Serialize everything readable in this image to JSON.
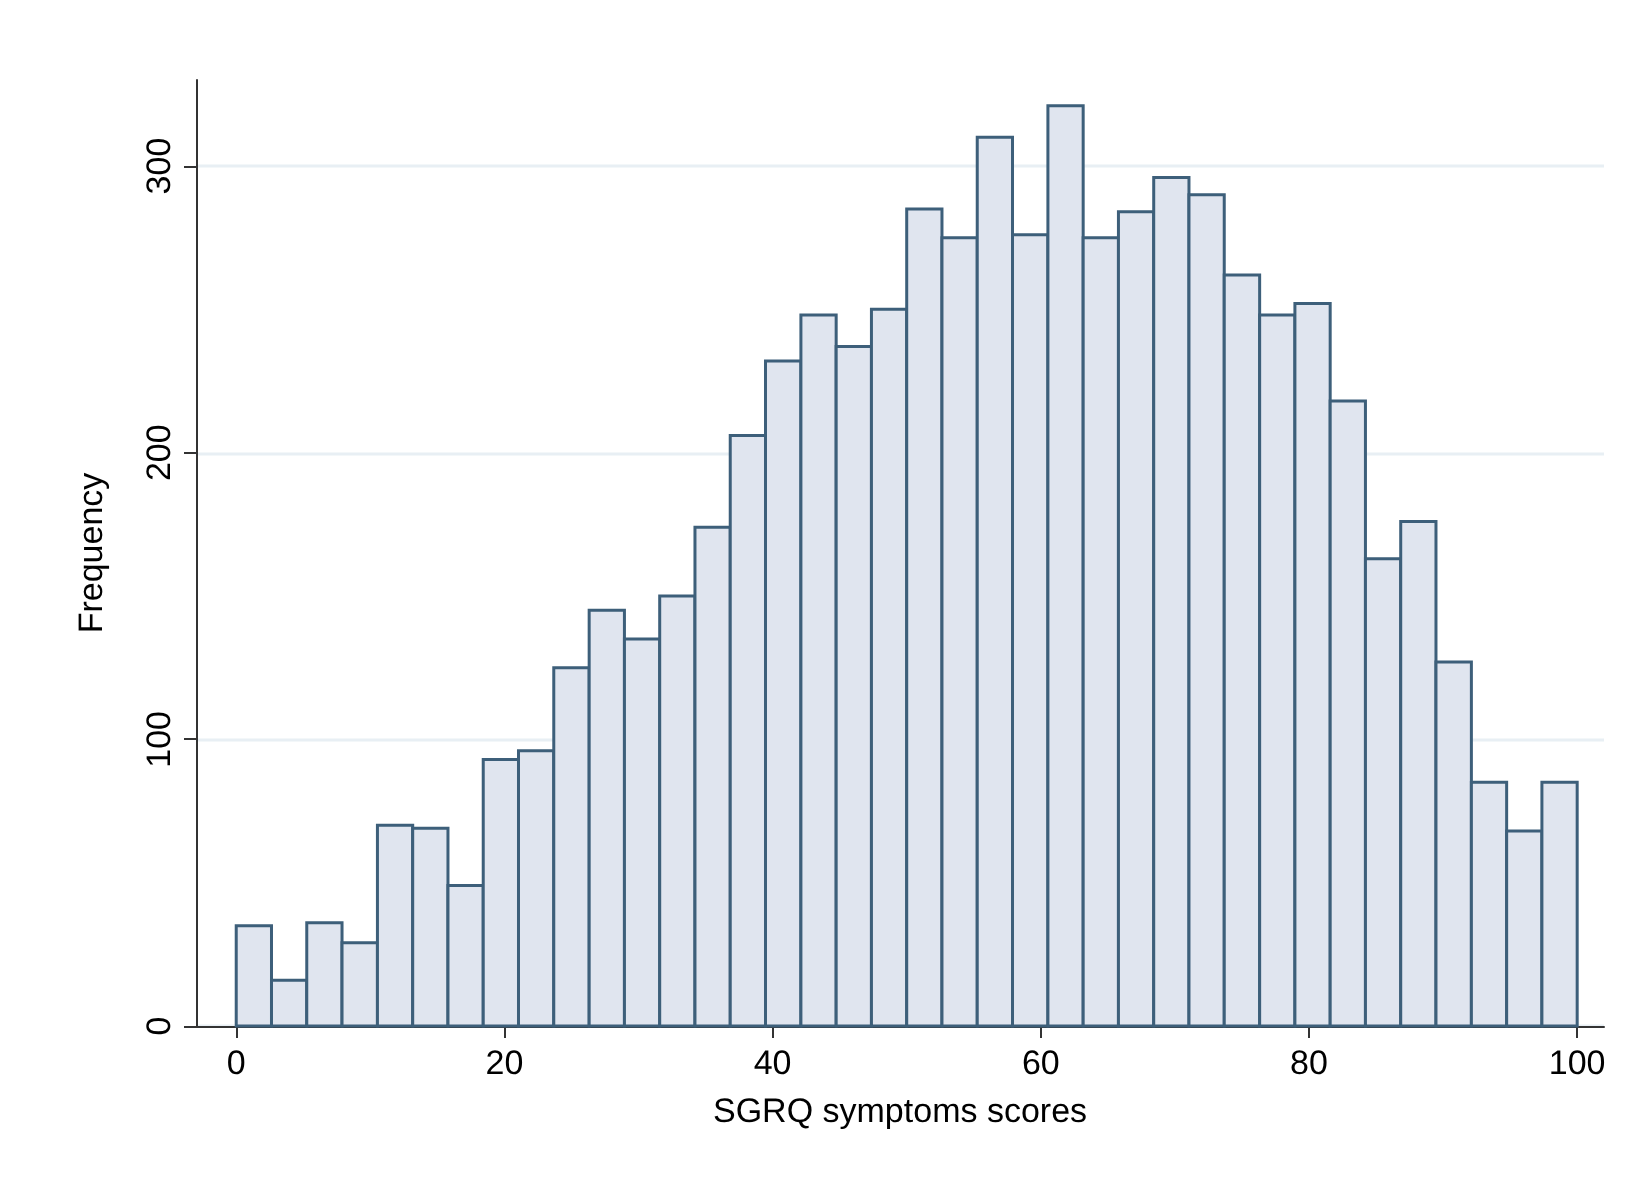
{
  "chart_data": {
    "type": "histogram",
    "xlabel": "SGRQ symptoms scores",
    "ylabel": "Frequency",
    "bins": [
      0,
      2.63,
      5.26,
      7.89,
      10.53,
      13.16,
      15.79,
      18.42,
      21.05,
      23.68,
      26.32,
      28.95,
      31.58,
      34.21,
      36.84,
      39.47,
      42.11,
      44.74,
      47.37,
      50,
      52.63,
      55.26,
      57.89,
      60.53,
      63.16,
      65.79,
      68.42,
      71.05,
      73.68,
      76.32,
      78.95,
      81.58,
      84.21,
      86.84,
      89.47,
      92.11,
      94.74,
      97.37,
      100
    ],
    "values": [
      35,
      16,
      36,
      29,
      70,
      69,
      49,
      93,
      96,
      125,
      145,
      135,
      150,
      174,
      206,
      232,
      248,
      237,
      250,
      285,
      275,
      310,
      276,
      321,
      275,
      284,
      296,
      290,
      262,
      248,
      252,
      218,
      163,
      176,
      127,
      85,
      68,
      85
    ],
    "color": "#e0e5ef",
    "xlim": [
      -3,
      102
    ],
    "ylim": [
      0,
      330
    ],
    "xticks": [
      0,
      20,
      40,
      60,
      80,
      100
    ],
    "yticks": [
      0,
      100,
      200,
      300
    ],
    "grid": "y"
  }
}
